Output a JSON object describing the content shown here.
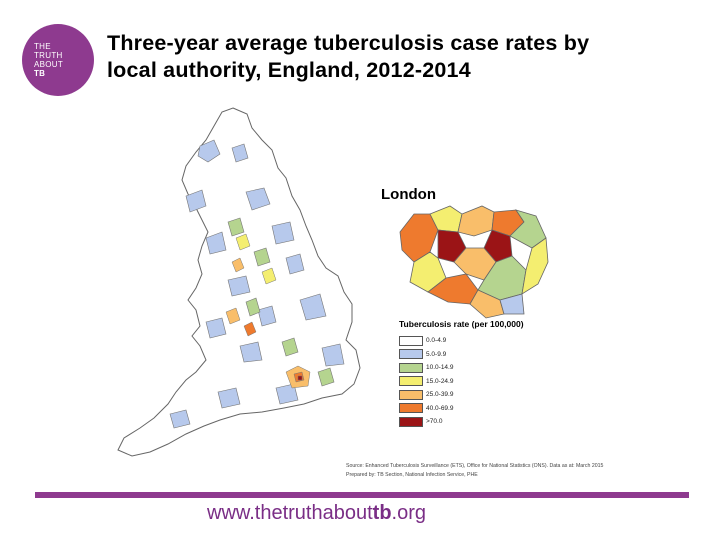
{
  "logo": {
    "line1": "THE",
    "line2": "TRUTH",
    "line3": "ABOUT",
    "line4": "TB",
    "color": "#8e3a8f"
  },
  "title_line1": "Three-year average tuberculosis case rates by",
  "title_line2": "local authority, England, 2012-2014",
  "inset_title": "London",
  "legend": {
    "title": "Tuberculosis rate (per 100,000)",
    "items": [
      {
        "label": "0.0-4.9",
        "color": "#ffffff"
      },
      {
        "label": "5.0-9.9",
        "color": "#b7c9ec"
      },
      {
        "label": "10.0-14.9",
        "color": "#b5d48f"
      },
      {
        "label": "15.0-24.9",
        "color": "#f4ee70"
      },
      {
        "label": "25.0-39.9",
        "color": "#f9be6a"
      },
      {
        "label": "40.0-69.9",
        "color": "#ee7a2e"
      },
      {
        "label": ">70.0",
        "color": "#9b1416"
      }
    ]
  },
  "source_line1": "Source: Enhanced Tuberculosis Surveillance (ETS), Office for National Statistics (ONS). Data as at: March 2015",
  "source_line2": "Prepared by: TB Section, National Infection Service, PHE",
  "url_prefix": "www.thetruthabout",
  "url_bold": "tb",
  "url_suffix": ".org"
}
